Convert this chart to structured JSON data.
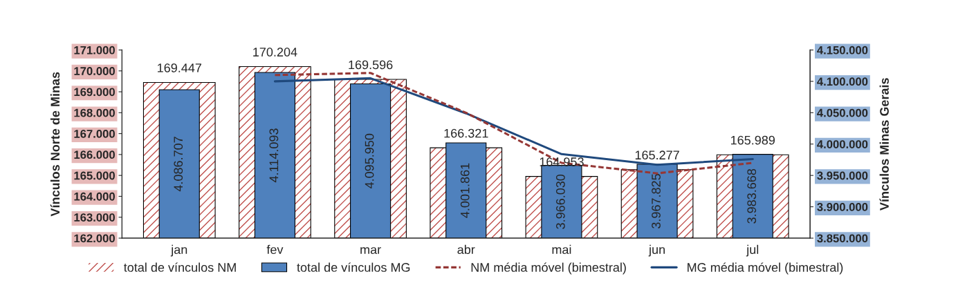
{
  "chart_data": {
    "type": "bar",
    "ylabel": "Vínculos Norte de Minas",
    "y2label": "Vínculos Minas Gerais",
    "categories": [
      "jan",
      "fev",
      "mar",
      "abr",
      "mai",
      "jun",
      "jul"
    ],
    "series": [
      {
        "name": "total de vínculos NM",
        "color": "#c0504d",
        "values": [
          169447,
          170204,
          169596,
          166321,
          164953,
          165277,
          165989
        ],
        "value_labels": [
          "169.447",
          "170.204",
          "169.596",
          "166.321",
          "164.953",
          "165.277",
          "165.989"
        ]
      },
      {
        "name": "total de vínculos MG",
        "axis": "y2",
        "color": "#4f81bd",
        "values": [
          4086707,
          4114093,
          4095950,
          4001861,
          3966030,
          3967825,
          3983668
        ],
        "value_labels": [
          "4.086.707",
          "4.114.093",
          "4.095.950",
          "4.001.861",
          "3.966.030",
          "3.967.825",
          "3.983.668"
        ]
      },
      {
        "name": "NM média móvel (bimestral)",
        "type": "line",
        "line_style": "dashed",
        "color": "#953735",
        "values": [
          null,
          169800,
          169900,
          168000,
          165600,
          165100,
          165600
        ]
      },
      {
        "name": "MG média móvel (bimestral)",
        "type": "line",
        "line_style": "solid",
        "axis": "y2",
        "color": "#1f497d",
        "values": [
          null,
          4100000,
          4105000,
          4049000,
          3984000,
          3967000,
          3976000
        ]
      }
    ],
    "ylim": [
      162000,
      171000
    ],
    "yticks": [
      {
        "value": 162000,
        "label": "162.000"
      },
      {
        "value": 163000,
        "label": "163.000"
      },
      {
        "value": 164000,
        "label": "164.000"
      },
      {
        "value": 165000,
        "label": "165.000"
      },
      {
        "value": 166000,
        "label": "166.000"
      },
      {
        "value": 167000,
        "label": "167.000"
      },
      {
        "value": 168000,
        "label": "168.000"
      },
      {
        "value": 169000,
        "label": "169.000"
      },
      {
        "value": 170000,
        "label": "170.000"
      },
      {
        "value": 171000,
        "label": "171.000"
      }
    ],
    "y2lim": [
      3850000,
      4150000
    ],
    "y2ticks": [
      {
        "value": 3850000,
        "label": "3.850.000"
      },
      {
        "value": 3900000,
        "label": "3.900.000"
      },
      {
        "value": 3950000,
        "label": "3.950.000"
      },
      {
        "value": 4000000,
        "label": "4.000.000"
      },
      {
        "value": 4050000,
        "label": "4.050.000"
      },
      {
        "value": 4100000,
        "label": "4.100.000"
      },
      {
        "value": 4150000,
        "label": "4.150.000"
      }
    ],
    "grid": false,
    "legend": "bottom"
  }
}
